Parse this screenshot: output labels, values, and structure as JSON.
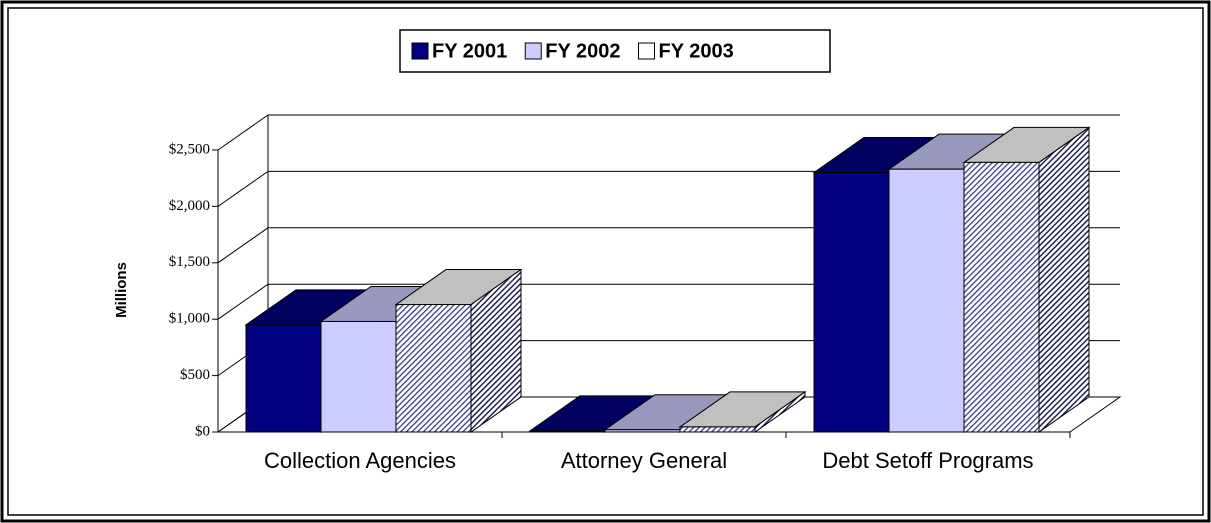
{
  "chart_data": {
    "type": "bar3d",
    "categories": [
      "Collection Agencies",
      "Attorney General",
      "Debt Setoff Programs"
    ],
    "series": [
      {
        "name": "FY 2001",
        "color": "#000080",
        "values": [
          950,
          10,
          2300
        ]
      },
      {
        "name": "FY 2002",
        "color": "#ccccff",
        "values": [
          980,
          20,
          2330
        ]
      },
      {
        "name": "FY 2003",
        "color": "#ffffff",
        "values": [
          1130,
          45,
          2390
        ]
      }
    ],
    "y_label": "Millions",
    "ylim": [
      0,
      2500
    ],
    "yticks": [
      {
        "value": 0,
        "label": "$0"
      },
      {
        "value": 500,
        "label": "$500"
      },
      {
        "value": 1000,
        "label": "$1,000"
      },
      {
        "value": 1500,
        "label": "$1,500"
      },
      {
        "value": 2000,
        "label": "$2,000"
      },
      {
        "value": 2500,
        "label": "$2,500"
      }
    ],
    "grid": true,
    "legend": "top"
  }
}
